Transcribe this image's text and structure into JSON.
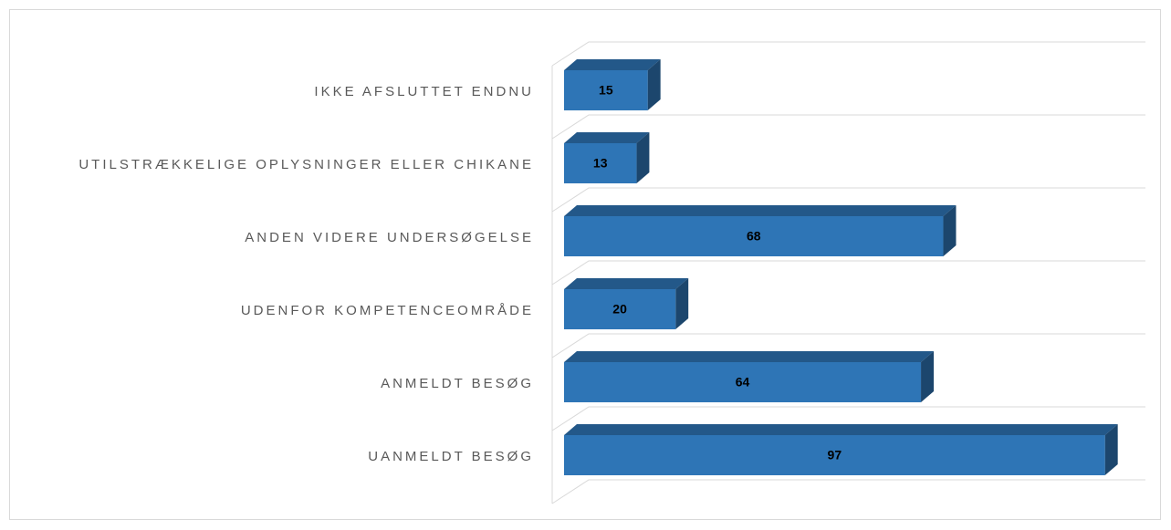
{
  "chart_data": {
    "type": "bar3d_horizontal",
    "categories": [
      "IKKE AFSLUTTET ENDNU",
      "UTILSTRÆKKELIGE OPLYSNINGER ELLER CHIKANE",
      "ANDEN VIDERE UNDERSØGELSE",
      "UDENFOR KOMPETENCEOMRÅDE",
      "ANMELDT BESØG",
      "UANMELDT BESØG"
    ],
    "values": [
      15,
      13,
      68,
      20,
      64,
      97
    ],
    "color": "#2e75b6",
    "xlim": [
      0,
      100
    ]
  }
}
